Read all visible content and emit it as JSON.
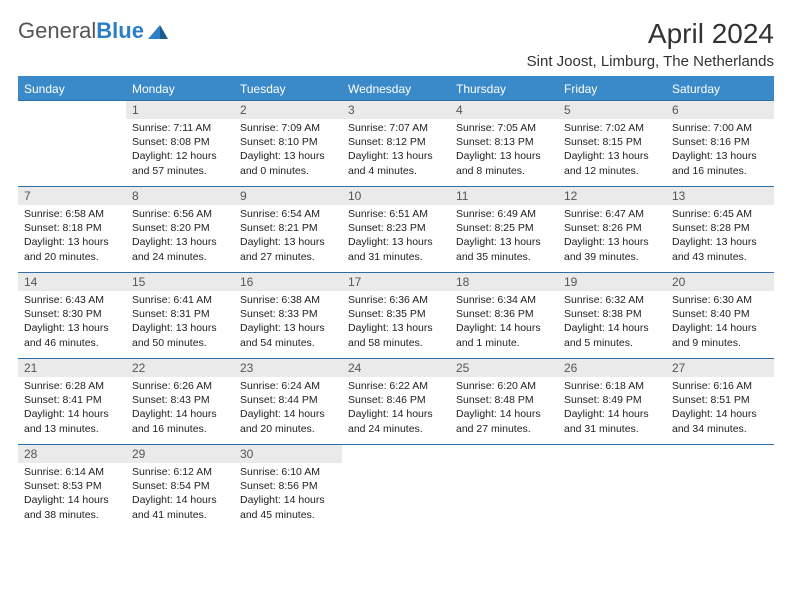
{
  "brand": {
    "name_part1": "General",
    "name_part2": "Blue"
  },
  "title": "April 2024",
  "location": "Sint Joost, Limburg, The Netherlands",
  "colors": {
    "header_bg": "#3a8ac9",
    "header_text": "#ffffff",
    "row_divider": "#2d6ea8",
    "daynum_bg": "#eaeaea",
    "text": "#222222",
    "brand_gray": "#555555",
    "brand_blue": "#2d7fc4"
  },
  "typography": {
    "base_family": "Arial",
    "title_size_pt": 21,
    "location_size_pt": 11,
    "header_size_pt": 9,
    "body_size_pt": 8
  },
  "weekdays": [
    "Sunday",
    "Monday",
    "Tuesday",
    "Wednesday",
    "Thursday",
    "Friday",
    "Saturday"
  ],
  "first_weekday_index": 1,
  "days": [
    {
      "n": 1,
      "sunrise": "7:11 AM",
      "sunset": "8:08 PM",
      "daylight": "12 hours and 57 minutes."
    },
    {
      "n": 2,
      "sunrise": "7:09 AM",
      "sunset": "8:10 PM",
      "daylight": "13 hours and 0 minutes."
    },
    {
      "n": 3,
      "sunrise": "7:07 AM",
      "sunset": "8:12 PM",
      "daylight": "13 hours and 4 minutes."
    },
    {
      "n": 4,
      "sunrise": "7:05 AM",
      "sunset": "8:13 PM",
      "daylight": "13 hours and 8 minutes."
    },
    {
      "n": 5,
      "sunrise": "7:02 AM",
      "sunset": "8:15 PM",
      "daylight": "13 hours and 12 minutes."
    },
    {
      "n": 6,
      "sunrise": "7:00 AM",
      "sunset": "8:16 PM",
      "daylight": "13 hours and 16 minutes."
    },
    {
      "n": 7,
      "sunrise": "6:58 AM",
      "sunset": "8:18 PM",
      "daylight": "13 hours and 20 minutes."
    },
    {
      "n": 8,
      "sunrise": "6:56 AM",
      "sunset": "8:20 PM",
      "daylight": "13 hours and 24 minutes."
    },
    {
      "n": 9,
      "sunrise": "6:54 AM",
      "sunset": "8:21 PM",
      "daylight": "13 hours and 27 minutes."
    },
    {
      "n": 10,
      "sunrise": "6:51 AM",
      "sunset": "8:23 PM",
      "daylight": "13 hours and 31 minutes."
    },
    {
      "n": 11,
      "sunrise": "6:49 AM",
      "sunset": "8:25 PM",
      "daylight": "13 hours and 35 minutes."
    },
    {
      "n": 12,
      "sunrise": "6:47 AM",
      "sunset": "8:26 PM",
      "daylight": "13 hours and 39 minutes."
    },
    {
      "n": 13,
      "sunrise": "6:45 AM",
      "sunset": "8:28 PM",
      "daylight": "13 hours and 43 minutes."
    },
    {
      "n": 14,
      "sunrise": "6:43 AM",
      "sunset": "8:30 PM",
      "daylight": "13 hours and 46 minutes."
    },
    {
      "n": 15,
      "sunrise": "6:41 AM",
      "sunset": "8:31 PM",
      "daylight": "13 hours and 50 minutes."
    },
    {
      "n": 16,
      "sunrise": "6:38 AM",
      "sunset": "8:33 PM",
      "daylight": "13 hours and 54 minutes."
    },
    {
      "n": 17,
      "sunrise": "6:36 AM",
      "sunset": "8:35 PM",
      "daylight": "13 hours and 58 minutes."
    },
    {
      "n": 18,
      "sunrise": "6:34 AM",
      "sunset": "8:36 PM",
      "daylight": "14 hours and 1 minute."
    },
    {
      "n": 19,
      "sunrise": "6:32 AM",
      "sunset": "8:38 PM",
      "daylight": "14 hours and 5 minutes."
    },
    {
      "n": 20,
      "sunrise": "6:30 AM",
      "sunset": "8:40 PM",
      "daylight": "14 hours and 9 minutes."
    },
    {
      "n": 21,
      "sunrise": "6:28 AM",
      "sunset": "8:41 PM",
      "daylight": "14 hours and 13 minutes."
    },
    {
      "n": 22,
      "sunrise": "6:26 AM",
      "sunset": "8:43 PM",
      "daylight": "14 hours and 16 minutes."
    },
    {
      "n": 23,
      "sunrise": "6:24 AM",
      "sunset": "8:44 PM",
      "daylight": "14 hours and 20 minutes."
    },
    {
      "n": 24,
      "sunrise": "6:22 AM",
      "sunset": "8:46 PM",
      "daylight": "14 hours and 24 minutes."
    },
    {
      "n": 25,
      "sunrise": "6:20 AM",
      "sunset": "8:48 PM",
      "daylight": "14 hours and 27 minutes."
    },
    {
      "n": 26,
      "sunrise": "6:18 AM",
      "sunset": "8:49 PM",
      "daylight": "14 hours and 31 minutes."
    },
    {
      "n": 27,
      "sunrise": "6:16 AM",
      "sunset": "8:51 PM",
      "daylight": "14 hours and 34 minutes."
    },
    {
      "n": 28,
      "sunrise": "6:14 AM",
      "sunset": "8:53 PM",
      "daylight": "14 hours and 38 minutes."
    },
    {
      "n": 29,
      "sunrise": "6:12 AM",
      "sunset": "8:54 PM",
      "daylight": "14 hours and 41 minutes."
    },
    {
      "n": 30,
      "sunrise": "6:10 AM",
      "sunset": "8:56 PM",
      "daylight": "14 hours and 45 minutes."
    }
  ],
  "labels": {
    "sunrise": "Sunrise:",
    "sunset": "Sunset:",
    "daylight": "Daylight:"
  }
}
